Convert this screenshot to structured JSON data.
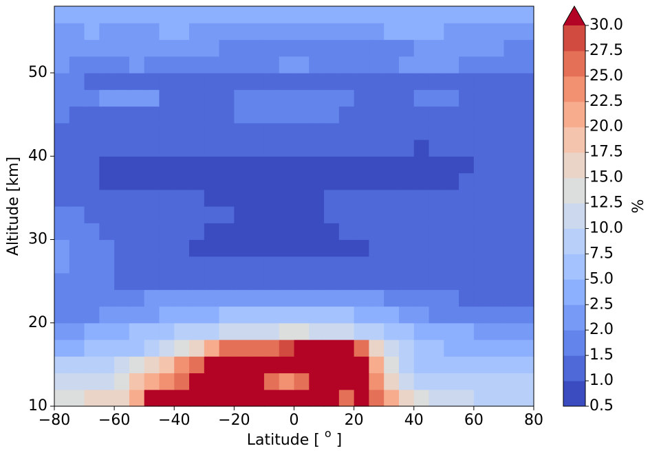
{
  "chart_data": {
    "type": "heatmap",
    "xlabel": "Latitude [",
    "xlabel_sup": "o",
    "xlabel_end": "]",
    "ylabel": "Altitude [km]",
    "x": [
      -77.5,
      -72.5,
      -67.5,
      -62.5,
      -57.5,
      -52.5,
      -47.5,
      -42.5,
      -37.5,
      -32.5,
      -27.5,
      -22.5,
      -17.5,
      -12.5,
      -7.5,
      -2.5,
      2.5,
      7.5,
      12.5,
      17.5,
      22.5,
      27.5,
      32.5,
      37.5,
      42.5,
      47.5,
      52.5,
      57.5,
      62.5,
      67.5,
      72.5,
      77.5
    ],
    "y": [
      11,
      13,
      15,
      17,
      19,
      21,
      23,
      25,
      27,
      29,
      31,
      33,
      35,
      37,
      39,
      41,
      43,
      45,
      47,
      49,
      51,
      53,
      55,
      57
    ],
    "z": [
      [
        14,
        14,
        16,
        16,
        16,
        21,
        32,
        32,
        32,
        32,
        32,
        32,
        32,
        32,
        32,
        32,
        32,
        32,
        32,
        26,
        32,
        26,
        21,
        16,
        14,
        11,
        11,
        11,
        9,
        9,
        9,
        9
      ],
      [
        11,
        11,
        11,
        11,
        14,
        19,
        21,
        24,
        26,
        32,
        32,
        32,
        32,
        32,
        26,
        24,
        26,
        32,
        32,
        32,
        32,
        24,
        16,
        11,
        9,
        9,
        9,
        9,
        9,
        9,
        9,
        9
      ],
      [
        9,
        9,
        9,
        9,
        11,
        14,
        16,
        19,
        24,
        26,
        32,
        32,
        32,
        32,
        32,
        32,
        32,
        32,
        32,
        32,
        32,
        21,
        14,
        9,
        6,
        6,
        6,
        6,
        6,
        6,
        6,
        6
      ],
      [
        3,
        3,
        6,
        6,
        6,
        6,
        9,
        11,
        14,
        16,
        21,
        26,
        26,
        26,
        26,
        29,
        32,
        32,
        32,
        32,
        26,
        16,
        11,
        9,
        6,
        6,
        3,
        3,
        3,
        3,
        3,
        3
      ],
      [
        2.2,
        2.2,
        3,
        3,
        3,
        6,
        6,
        6,
        9,
        9,
        9,
        11,
        11,
        11,
        11,
        14,
        14,
        11,
        11,
        11,
        9,
        9,
        6,
        6,
        3,
        3,
        3,
        3,
        2.2,
        2.2,
        2.2,
        2.2
      ],
      [
        1.8,
        1.8,
        1.8,
        2.2,
        2.2,
        2.2,
        2.2,
        3,
        3,
        3,
        3,
        6,
        6,
        6,
        6,
        6,
        6,
        6,
        6,
        6,
        3,
        3,
        3,
        2.2,
        2.2,
        1.8,
        1.8,
        1.8,
        1.8,
        1.8,
        1.8,
        1.8
      ],
      [
        1.8,
        1.8,
        1.8,
        1.8,
        1.8,
        1.8,
        2.2,
        2.2,
        2.2,
        2.2,
        2.2,
        2.2,
        2.2,
        2.2,
        2.2,
        2.2,
        2.2,
        2.2,
        2.2,
        2.2,
        2.2,
        2.2,
        1.8,
        1.8,
        1.8,
        1.8,
        1.8,
        1.2,
        1.2,
        1.2,
        1.2,
        1.2
      ],
      [
        1.8,
        1.8,
        1.8,
        1.8,
        1.2,
        1.2,
        1.2,
        1.2,
        1.2,
        1.2,
        1.2,
        1.2,
        1.2,
        1.2,
        1.2,
        1.2,
        1.2,
        1.2,
        1.2,
        1.2,
        1.2,
        1.2,
        1.2,
        1.2,
        1.2,
        1.2,
        1.2,
        1.2,
        1.2,
        1.2,
        1.2,
        1.2
      ],
      [
        2.2,
        1.8,
        1.8,
        1.8,
        1.2,
        1.2,
        1.2,
        1.2,
        1.2,
        1.2,
        1.2,
        1.2,
        1.2,
        1.2,
        1.2,
        1.2,
        1.2,
        1.2,
        1.2,
        1.2,
        1.2,
        1.2,
        1.2,
        1.2,
        1.2,
        1.2,
        1.2,
        1.2,
        1.2,
        1.2,
        1.2,
        1.2
      ],
      [
        2.2,
        1.8,
        1.8,
        1.8,
        1.2,
        1.2,
        1.2,
        1.2,
        1.2,
        0.8,
        0.8,
        0.8,
        0.8,
        0.8,
        0.8,
        0.8,
        0.8,
        0.8,
        0.8,
        0.8,
        0.8,
        1.2,
        1.2,
        1.2,
        1.2,
        1.2,
        1.2,
        1.2,
        1.2,
        1.2,
        1.2,
        1.2
      ],
      [
        1.8,
        1.8,
        1.8,
        1.2,
        1.2,
        1.2,
        1.2,
        1.2,
        1.2,
        1.2,
        0.8,
        0.8,
        0.8,
        0.8,
        0.8,
        0.8,
        0.8,
        0.8,
        0.8,
        1.2,
        1.2,
        1.2,
        1.2,
        1.2,
        1.2,
        1.2,
        1.2,
        1.2,
        1.2,
        1.2,
        1.2,
        1.2
      ],
      [
        1.8,
        1.8,
        1.2,
        1.2,
        1.2,
        1.2,
        1.2,
        1.2,
        1.2,
        1.2,
        1.2,
        1.2,
        0.8,
        0.8,
        0.8,
        0.8,
        0.8,
        0.8,
        1.2,
        1.2,
        1.2,
        1.2,
        1.2,
        1.2,
        1.2,
        1.2,
        1.2,
        1.2,
        1.2,
        1.2,
        1.2,
        1.2
      ],
      [
        1.2,
        1.2,
        1.2,
        1.2,
        1.2,
        1.2,
        1.2,
        1.2,
        1.2,
        1.2,
        0.8,
        0.8,
        0.8,
        0.8,
        0.8,
        0.8,
        0.8,
        0.8,
        1.2,
        1.2,
        1.2,
        1.2,
        1.2,
        1.2,
        1.2,
        1.2,
        1.2,
        1.2,
        1.2,
        1.2,
        1.2,
        1.2
      ],
      [
        1.2,
        1.2,
        1.2,
        0.8,
        0.8,
        0.8,
        0.8,
        0.8,
        0.8,
        0.8,
        0.8,
        0.8,
        0.8,
        0.8,
        0.8,
        0.8,
        0.8,
        0.8,
        0.8,
        0.8,
        0.8,
        0.8,
        0.8,
        0.8,
        0.8,
        0.8,
        0.8,
        1.2,
        1.2,
        1.2,
        1.2,
        1.2
      ],
      [
        1.2,
        1.2,
        1.2,
        0.8,
        0.8,
        0.8,
        0.8,
        0.8,
        0.8,
        0.8,
        0.8,
        0.8,
        0.8,
        0.8,
        0.8,
        0.8,
        0.8,
        0.8,
        0.8,
        0.8,
        0.8,
        0.8,
        0.8,
        0.8,
        0.8,
        0.8,
        0.8,
        0.8,
        1.2,
        1.2,
        1.2,
        1.2
      ],
      [
        1.2,
        1.2,
        1.2,
        1.2,
        1.2,
        1.2,
        1.2,
        1.2,
        1.2,
        1.2,
        1.2,
        1.2,
        1.2,
        1.2,
        1.2,
        1.2,
        1.2,
        1.2,
        1.2,
        1.2,
        1.2,
        1.2,
        1.2,
        1.2,
        0.8,
        1.2,
        1.2,
        1.2,
        1.2,
        1.2,
        1.2,
        1.2
      ],
      [
        1.2,
        1.2,
        1.2,
        1.2,
        1.2,
        1.2,
        1.2,
        1.2,
        1.2,
        1.2,
        1.2,
        1.2,
        1.2,
        1.2,
        1.2,
        1.2,
        1.2,
        1.2,
        1.2,
        1.2,
        1.2,
        1.2,
        1.2,
        1.2,
        1.2,
        1.2,
        1.2,
        1.2,
        1.2,
        1.2,
        1.2,
        1.2
      ],
      [
        1.8,
        1.2,
        1.2,
        1.2,
        1.2,
        1.2,
        1.2,
        1.2,
        1.2,
        1.2,
        1.2,
        1.2,
        1.8,
        1.8,
        1.8,
        1.8,
        1.8,
        1.8,
        1.8,
        1.2,
        1.2,
        1.2,
        1.2,
        1.2,
        1.2,
        1.2,
        1.2,
        1.2,
        1.2,
        1.2,
        1.2,
        1.2
      ],
      [
        1.8,
        1.8,
        1.8,
        2.2,
        2.2,
        2.2,
        2.2,
        1.2,
        1.2,
        1.2,
        1.2,
        1.2,
        1.8,
        1.8,
        1.8,
        1.8,
        1.8,
        1.8,
        1.8,
        1.8,
        1.2,
        1.2,
        1.2,
        1.2,
        1.8,
        1.8,
        1.8,
        1.2,
        1.2,
        1.2,
        1.2,
        1.2
      ],
      [
        1.8,
        1.8,
        1.2,
        1.2,
        1.2,
        1.2,
        1.2,
        1.2,
        1.2,
        1.2,
        1.2,
        1.2,
        1.2,
        1.2,
        1.2,
        1.2,
        1.2,
        1.2,
        1.2,
        1.2,
        1.2,
        1.2,
        1.2,
        1.2,
        1.2,
        1.2,
        1.2,
        1.2,
        1.2,
        1.2,
        1.2,
        1.2
      ],
      [
        2.2,
        1.8,
        1.8,
        1.8,
        1.8,
        2.2,
        1.8,
        1.8,
        1.8,
        1.8,
        1.8,
        1.8,
        1.8,
        1.8,
        1.8,
        2.2,
        2.2,
        1.8,
        1.8,
        1.8,
        1.8,
        1.8,
        1.8,
        2.2,
        2.2,
        2.2,
        2.2,
        1.8,
        1.8,
        1.8,
        1.8,
        1.8
      ],
      [
        2.2,
        2.2,
        2.2,
        2.2,
        2.2,
        2.2,
        2.2,
        2.2,
        2.2,
        2.2,
        2.2,
        1.8,
        1.8,
        1.8,
        1.8,
        1.8,
        1.8,
        1.8,
        1.8,
        1.8,
        1.8,
        1.8,
        1.8,
        1.8,
        2.2,
        2.2,
        2.2,
        2.2,
        2.2,
        2.2,
        1.8,
        1.8
      ],
      [
        2.2,
        2.2,
        3,
        2.2,
        2.2,
        2.2,
        2.2,
        3,
        3,
        2.2,
        2.2,
        2.2,
        2.2,
        2.2,
        2.2,
        2.2,
        2.2,
        2.2,
        2.2,
        2.2,
        2.2,
        2.2,
        3,
        3,
        3,
        3,
        2.2,
        2.2,
        2.2,
        2.2,
        2.2,
        2.2
      ],
      [
        3,
        3,
        3,
        3,
        3,
        3,
        3,
        3,
        3,
        3,
        3,
        3,
        3,
        3,
        3,
        3,
        3,
        3,
        3,
        3,
        3,
        3,
        3,
        3,
        3,
        3,
        3,
        3,
        3,
        3,
        3,
        3
      ]
    ],
    "xlim": [
      -80,
      80
    ],
    "xticks": [
      {
        "value": -80,
        "label": "−80"
      },
      {
        "value": -60,
        "label": "−60"
      },
      {
        "value": -40,
        "label": "−40"
      },
      {
        "value": -20,
        "label": "−20"
      },
      0,
      20,
      40,
      60,
      80
    ],
    "ylim": [
      10,
      58
    ],
    "yticks": [
      10,
      20,
      30,
      40,
      50
    ],
    "colorbar": {
      "label": "%",
      "levels": [
        0.5,
        1,
        1.5,
        2,
        2.5,
        5,
        7.5,
        10,
        12.5,
        15,
        17.5,
        20,
        22.5,
        25,
        27.5,
        30
      ],
      "ticks": [
        0.5,
        {
          "value": 1,
          "label": "1.0"
        },
        1.5,
        {
          "value": 2,
          "label": "2.0"
        },
        2.5,
        {
          "value": 5,
          "label": "5.0"
        },
        7.5,
        {
          "value": 10,
          "label": "10.0"
        },
        12.5,
        {
          "value": 15,
          "label": "15.0"
        },
        17.5,
        {
          "value": 20,
          "label": "20.0"
        },
        22.5,
        {
          "value": 25,
          "label": "25.0"
        },
        27.5,
        {
          "value": 30,
          "label": "30.0"
        }
      ],
      "colors": [
        "#3b4cc0",
        "#4f69d9",
        "#6384eb",
        "#779af7",
        "#8db0fe",
        "#a3c2fe",
        "#b8d0f9",
        "#cbd8ee",
        "#dcdddd",
        "#ead4c8",
        "#f5c4ad",
        "#f7ac8e",
        "#f29072",
        "#e57058",
        "#d24b40"
      ],
      "extend_color": "#b40426"
    }
  }
}
